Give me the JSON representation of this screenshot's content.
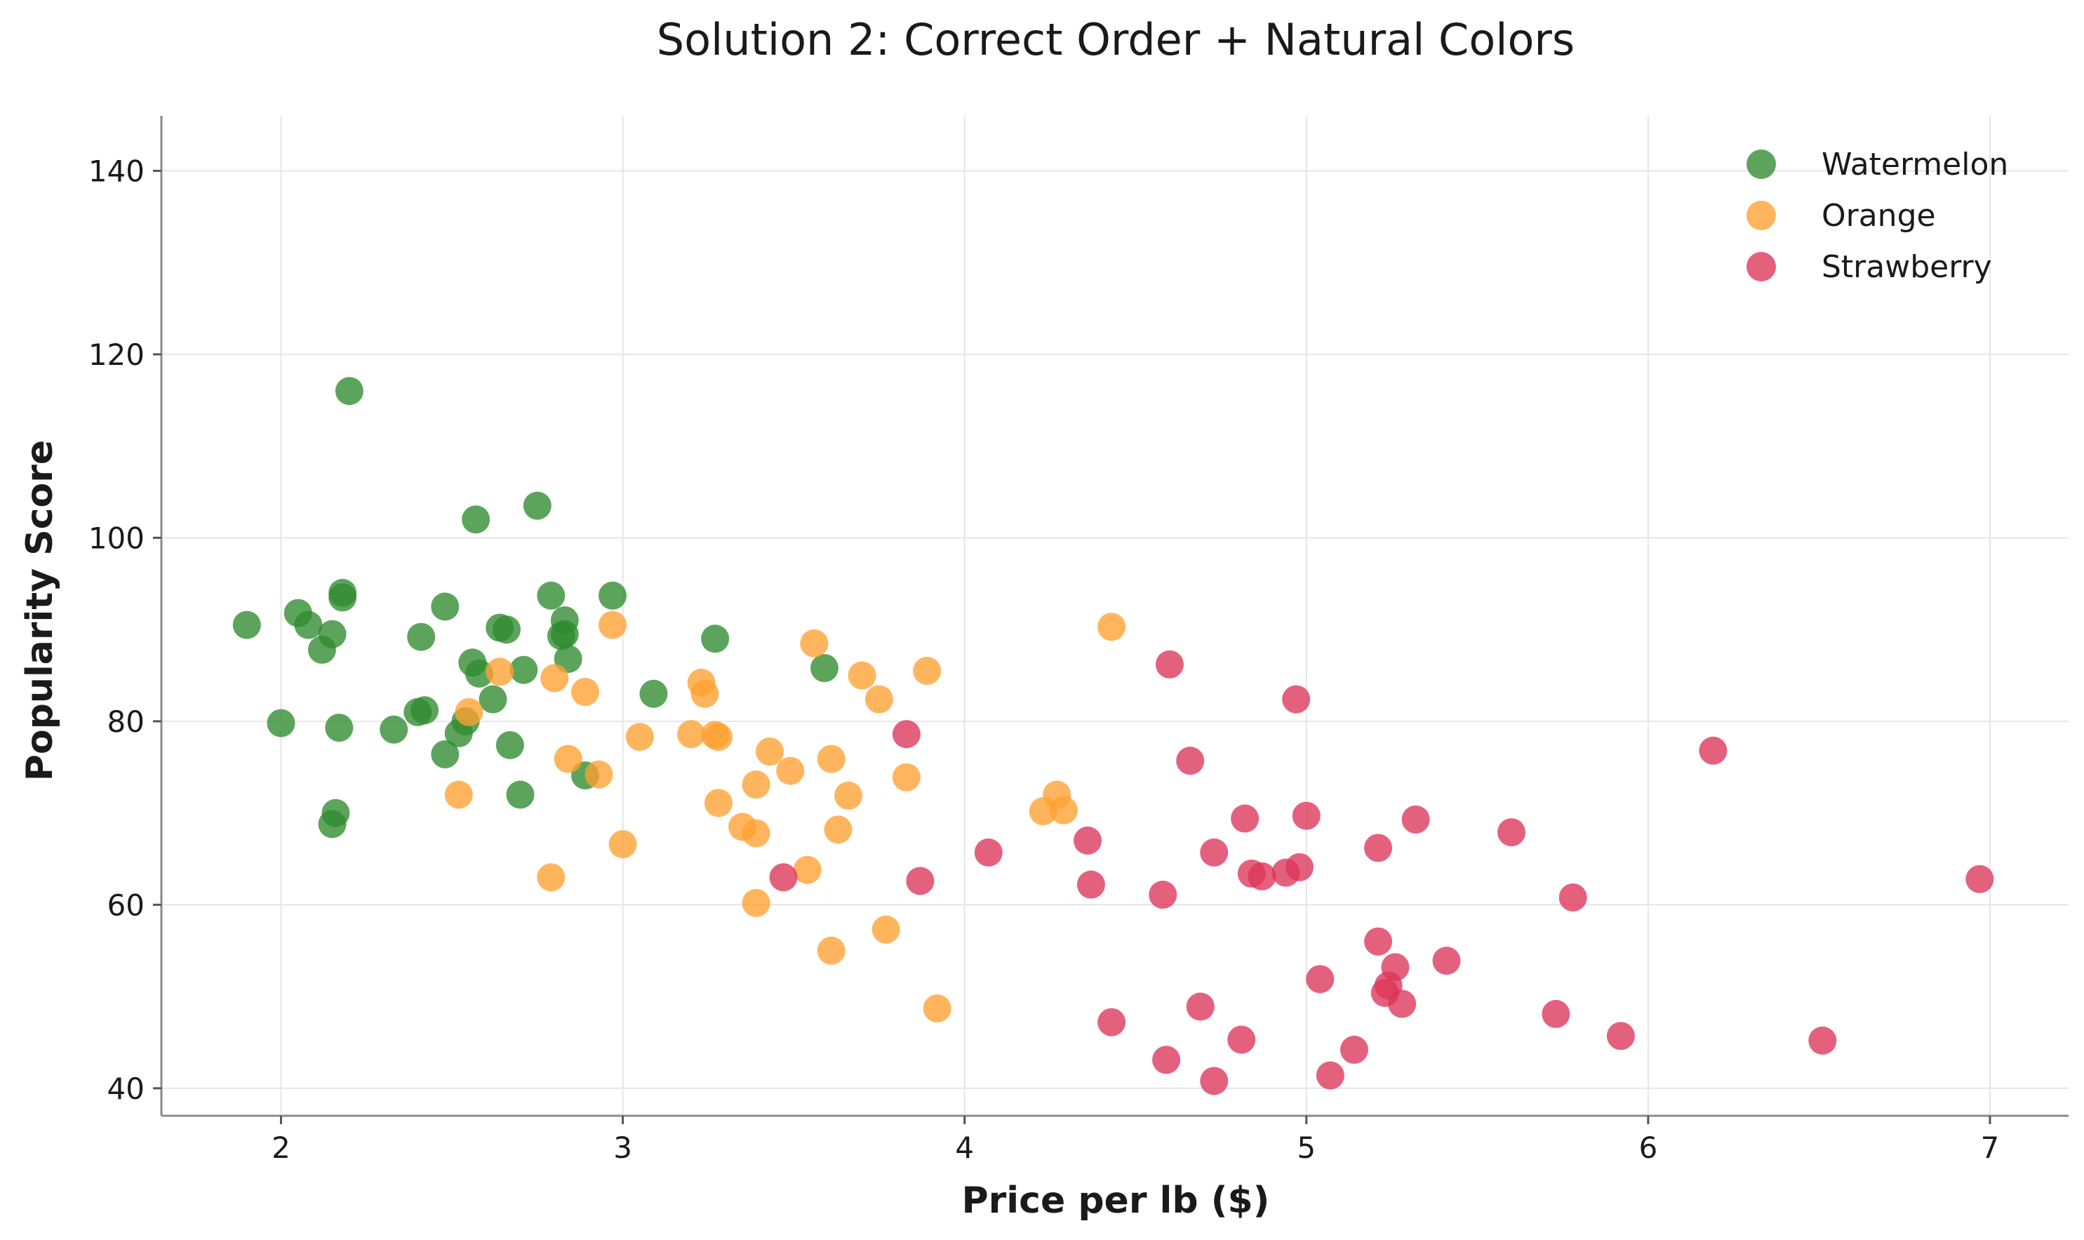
{
  "chart_data": {
    "type": "scatter",
    "title": "Solution 2: Correct Order + Natural Colors",
    "xlabel": "Price per lb ($)",
    "ylabel": "Popularity Score",
    "xlim": [
      1.65,
      7.23
    ],
    "ylim": [
      37,
      146
    ],
    "xticks": [
      2,
      3,
      4,
      5,
      6,
      7
    ],
    "yticks": [
      40,
      60,
      80,
      100,
      120,
      140
    ],
    "grid": true,
    "legend_position": "top-right",
    "series": [
      {
        "name": "Watermelon",
        "color": "#2e8b2e",
        "points": [
          [
            2.2,
            116
          ],
          [
            2.75,
            103.5
          ],
          [
            2.57,
            102
          ],
          [
            1.9,
            90.5
          ],
          [
            2.05,
            91.8
          ],
          [
            2.08,
            90.5
          ],
          [
            2.15,
            89.5
          ],
          [
            2.12,
            87.8
          ],
          [
            2.18,
            94
          ],
          [
            2.18,
            93.5
          ],
          [
            2.41,
            89.2
          ],
          [
            2.48,
            92.5
          ],
          [
            2.64,
            90.2
          ],
          [
            2.66,
            90
          ],
          [
            2.79,
            93.7
          ],
          [
            2.83,
            91
          ],
          [
            2.82,
            89.3
          ],
          [
            2.83,
            89.5
          ],
          [
            2.97,
            93.7
          ],
          [
            2.84,
            86.8
          ],
          [
            2.56,
            86.4
          ],
          [
            2.58,
            85.2
          ],
          [
            2.71,
            85.6
          ],
          [
            3.27,
            89
          ],
          [
            3.59,
            85.8
          ],
          [
            3.09,
            83
          ],
          [
            2.62,
            82.4
          ],
          [
            2.4,
            81
          ],
          [
            2.42,
            81.2
          ],
          [
            2.54,
            80
          ],
          [
            2.52,
            78.7
          ],
          [
            2.0,
            79.8
          ],
          [
            2.17,
            79.3
          ],
          [
            2.33,
            79.1
          ],
          [
            2.48,
            76.4
          ],
          [
            2.67,
            77.4
          ],
          [
            2.89,
            74.1
          ],
          [
            2.7,
            72
          ],
          [
            2.16,
            70
          ],
          [
            2.15,
            68.8
          ]
        ]
      },
      {
        "name": "Orange",
        "color": "#ffa030",
        "points": [
          [
            2.97,
            90.5
          ],
          [
            4.43,
            90.3
          ],
          [
            3.56,
            88.5
          ],
          [
            3.7,
            85
          ],
          [
            3.89,
            85.5
          ],
          [
            2.64,
            85.4
          ],
          [
            2.8,
            84.7
          ],
          [
            2.89,
            83.2
          ],
          [
            3.23,
            84.2
          ],
          [
            3.24,
            83
          ],
          [
            3.75,
            82.4
          ],
          [
            2.55,
            81
          ],
          [
            3.05,
            78.3
          ],
          [
            3.2,
            78.6
          ],
          [
            3.27,
            78.5
          ],
          [
            3.28,
            78.3
          ],
          [
            3.43,
            76.7
          ],
          [
            3.61,
            75.9
          ],
          [
            2.84,
            75.9
          ],
          [
            3.49,
            74.6
          ],
          [
            2.93,
            74.2
          ],
          [
            3.83,
            73.9
          ],
          [
            3.39,
            73.1
          ],
          [
            2.52,
            72
          ],
          [
            3.66,
            71.9
          ],
          [
            3.28,
            71.1
          ],
          [
            4.27,
            72
          ],
          [
            4.23,
            70.2
          ],
          [
            4.29,
            70.3
          ],
          [
            3.35,
            68.5
          ],
          [
            3.39,
            67.8
          ],
          [
            3.63,
            68.2
          ],
          [
            3.0,
            66.6
          ],
          [
            2.79,
            63
          ],
          [
            3.54,
            63.8
          ],
          [
            3.39,
            60.2
          ],
          [
            3.77,
            57.3
          ],
          [
            3.61,
            55
          ],
          [
            3.92,
            48.7
          ]
        ]
      },
      {
        "name": "Strawberry",
        "color": "#dc3558",
        "points": [
          [
            4.6,
            86.2
          ],
          [
            4.97,
            82.4
          ],
          [
            3.83,
            78.6
          ],
          [
            6.19,
            76.8
          ],
          [
            4.66,
            75.7
          ],
          [
            4.82,
            69.4
          ],
          [
            5.0,
            69.7
          ],
          [
            5.32,
            69.3
          ],
          [
            4.36,
            67
          ],
          [
            5.6,
            67.9
          ],
          [
            4.07,
            65.7
          ],
          [
            4.73,
            65.7
          ],
          [
            5.21,
            66.2
          ],
          [
            3.47,
            63
          ],
          [
            4.84,
            63.4
          ],
          [
            4.87,
            63.1
          ],
          [
            4.94,
            63.5
          ],
          [
            4.98,
            64.1
          ],
          [
            3.87,
            62.6
          ],
          [
            4.37,
            62.2
          ],
          [
            4.58,
            61.1
          ],
          [
            5.78,
            60.8
          ],
          [
            6.97,
            62.8
          ],
          [
            5.21,
            56
          ],
          [
            5.26,
            53.2
          ],
          [
            5.41,
            53.9
          ],
          [
            5.04,
            51.9
          ],
          [
            5.24,
            51.2
          ],
          [
            5.23,
            50.4
          ],
          [
            5.28,
            49.2
          ],
          [
            4.69,
            48.9
          ],
          [
            5.73,
            48.1
          ],
          [
            4.43,
            47.2
          ],
          [
            4.81,
            45.3
          ],
          [
            5.92,
            45.7
          ],
          [
            6.51,
            45.2
          ],
          [
            4.59,
            43.1
          ],
          [
            5.14,
            44.2
          ],
          [
            5.07,
            41.4
          ],
          [
            4.73,
            40.8
          ]
        ]
      }
    ]
  }
}
